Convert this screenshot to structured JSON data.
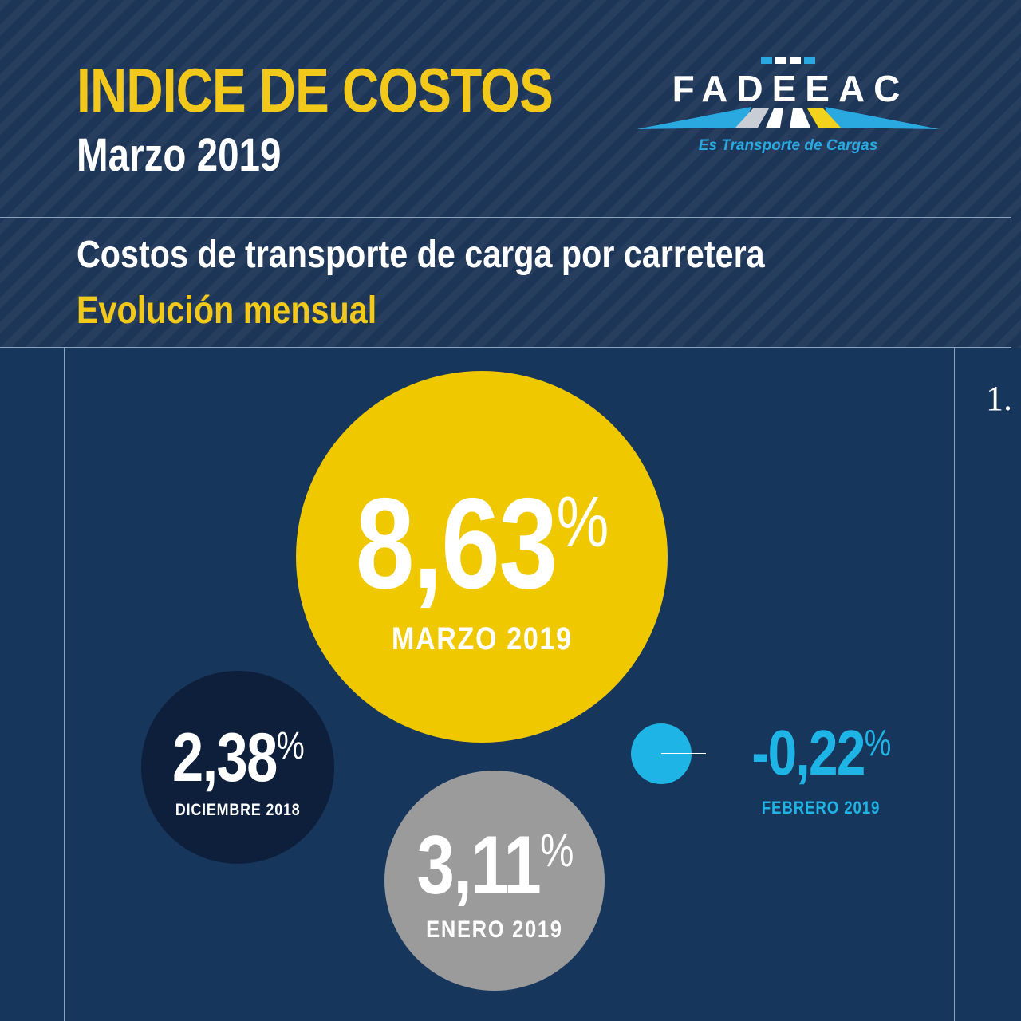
{
  "header": {
    "title": "INDICE DE COSTOS",
    "subtitle": "Marzo 2019"
  },
  "logo": {
    "name": "FADEEAC",
    "tagline": "Es Transporte de Cargas"
  },
  "section": {
    "title": "Costos de transporte de carga por carretera",
    "subtitle": "Evolución mensual"
  },
  "page_number": "1.",
  "colors": {
    "background": "#17365c",
    "accent_yellow": "#f0c800",
    "accent_cyan": "#1eb5e6",
    "dark_navy": "#0d1f3b",
    "gray": "#9b9b9b"
  },
  "bubbles": {
    "marzo": {
      "value": "8,63",
      "unit": "%",
      "label": "MARZO 2019"
    },
    "diciembre": {
      "value": "2,38",
      "unit": "%",
      "label": "DICIEMBRE 2018"
    },
    "enero": {
      "value": "3,11",
      "unit": "%",
      "label": "ENERO 2019"
    },
    "febrero": {
      "value": "-0,22",
      "unit": "%",
      "label": "FEBRERO 2019"
    }
  }
}
